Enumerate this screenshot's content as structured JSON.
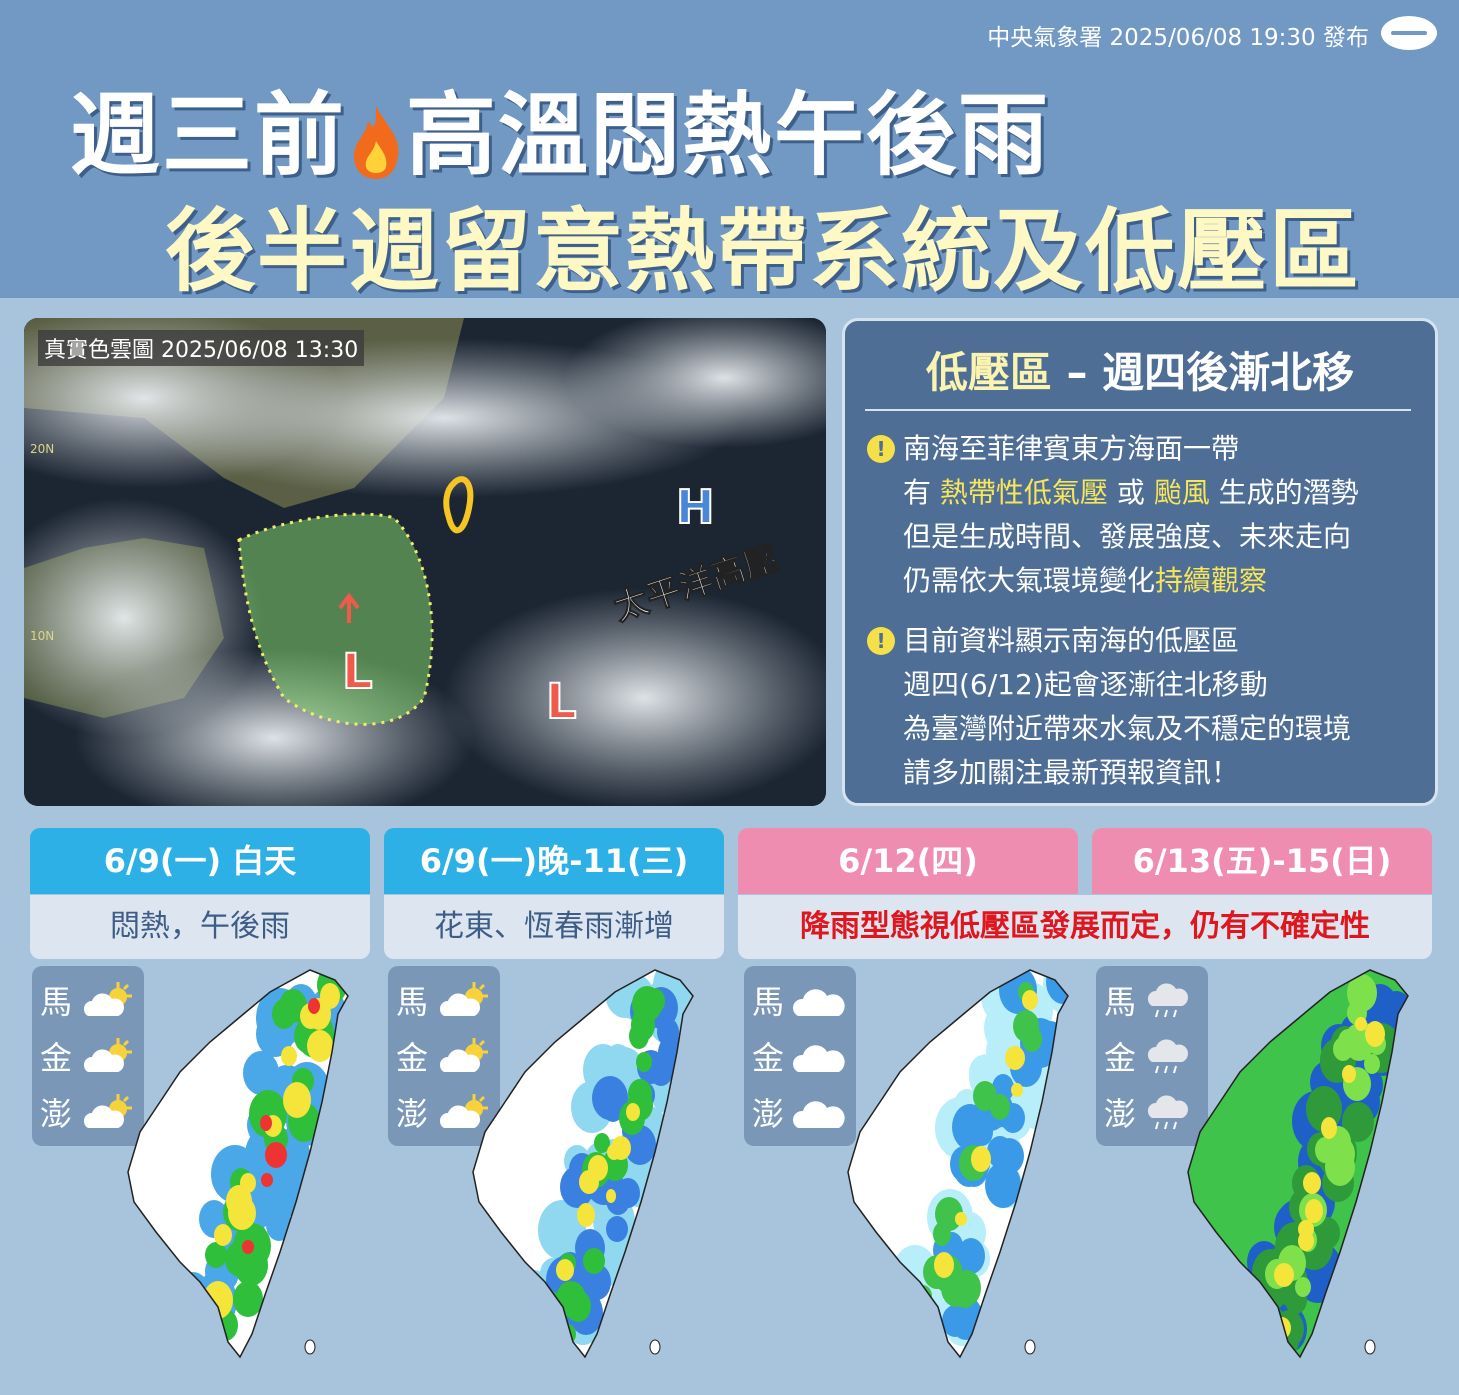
{
  "header": {
    "issuer": "中央氣象署 2025/06/08 19:30 發布",
    "title_line1_a": "週三前",
    "title_line1_b": "高溫悶熱午後雨",
    "title_line2": "後半週留意熱帶系統及低壓區",
    "flame_icon": "fire-icon"
  },
  "satellite": {
    "label": "真實色雲圖 2025/06/08 13:30",
    "high_marker": "H",
    "high_label": "太平洋高壓",
    "low_marker": "L",
    "lat_labels": [
      "20N",
      "10N"
    ]
  },
  "info": {
    "title_a": "低壓區",
    "title_b": " – 週四後漸北移",
    "bullet1": {
      "l1": "南海至菲律賓東方海面一帶",
      "l2_a": "有 ",
      "l2_h1": "熱帶性低氣壓",
      "l2_b": " 或 ",
      "l2_h2": "颱風",
      "l2_c": " 生成的潛勢",
      "l3": "但是生成時間、發展強度、未來走向",
      "l4_a": "仍需依大氣環境變化",
      "l4_h": "持續觀察"
    },
    "bullet2": {
      "l1": "目前資料顯示南海的低壓區",
      "l2": "週四(6/12)起會逐漸往北移動",
      "l3": "為臺灣附近帶來水氣及不穩定的環境",
      "l4": "請多加關注最新預報資訊！"
    }
  },
  "periods": [
    {
      "label": "6/9(一) 白天",
      "desc": "悶熱，午後雨",
      "color": "#2cb0e6",
      "islands": [
        {
          "name": "馬",
          "wx": "partly-cloudy"
        },
        {
          "name": "金",
          "wx": "partly-cloudy"
        },
        {
          "name": "澎",
          "wx": "partly-cloudy"
        }
      ]
    },
    {
      "label": "6/9(一)晚-11(三)",
      "desc": "花東、恆春雨漸增",
      "color": "#2cb0e6",
      "islands": [
        {
          "name": "馬",
          "wx": "partly-cloudy"
        },
        {
          "name": "金",
          "wx": "partly-cloudy"
        },
        {
          "name": "澎",
          "wx": "partly-cloudy"
        }
      ]
    },
    {
      "label": "6/12(四)",
      "desc": "降雨型態視低壓區發展而定，仍有不確定性",
      "color": "#ef8db1",
      "islands": [
        {
          "name": "馬",
          "wx": "cloudy"
        },
        {
          "name": "金",
          "wx": "cloudy"
        },
        {
          "name": "澎",
          "wx": "cloudy"
        }
      ]
    },
    {
      "label": "6/13(五)-15(日)",
      "color": "#ef8db1",
      "islands": [
        {
          "name": "馬",
          "wx": "rain"
        },
        {
          "name": "金",
          "wx": "rain"
        },
        {
          "name": "澎",
          "wx": "rain"
        }
      ]
    }
  ],
  "colors": {
    "header": "#7199c3",
    "background": "#a8c3dc",
    "info_panel": "#4e6e95",
    "highlight": "#f7e55a",
    "warning_text": "#e0161f"
  }
}
